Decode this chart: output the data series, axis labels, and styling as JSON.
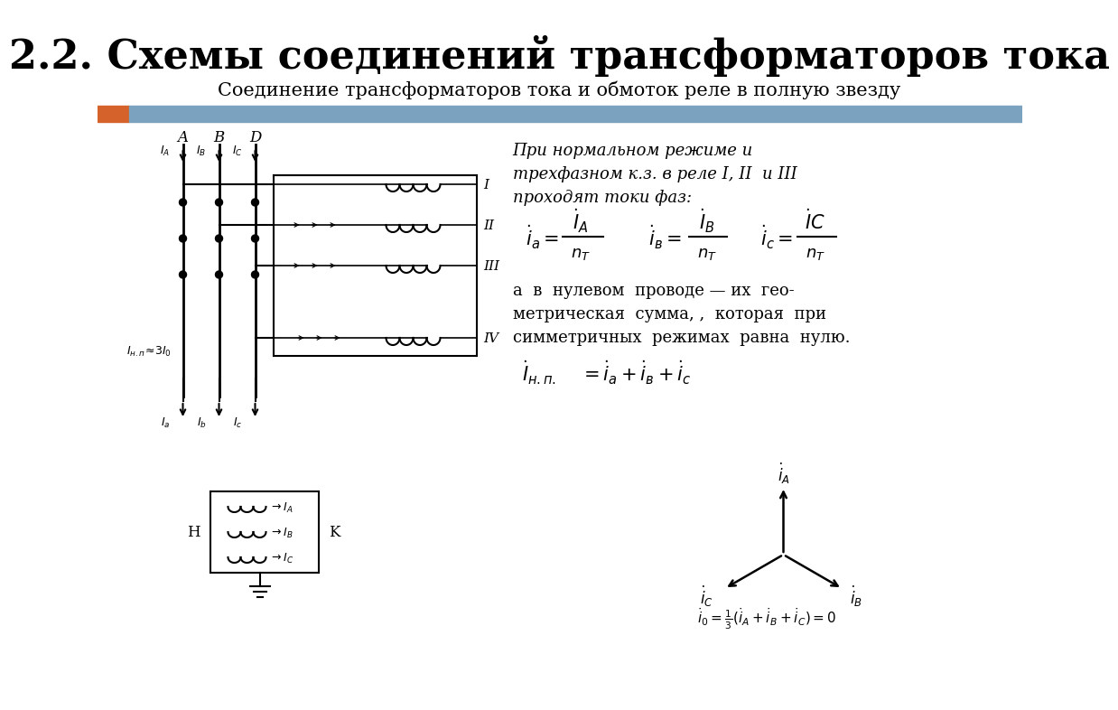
{
  "title": "2.2. Схемы соединений трансформаторов тока",
  "subtitle": "Соединение трансформаторов тока и обмоток реле в полную звезду",
  "bar_orange": "#d4622a",
  "bar_blue": "#7ba3c0",
  "text_intro_italic": "При нормальном режиме и\nтрехфазном к.з. в реле I, II  и III\nпроходят токи фаз:",
  "text_body": "а  в  нулевом  проводе  —  их  гео-\nметрическая  сумма, ,  которая  при\nсимметричных  режимах  равна  нулю."
}
